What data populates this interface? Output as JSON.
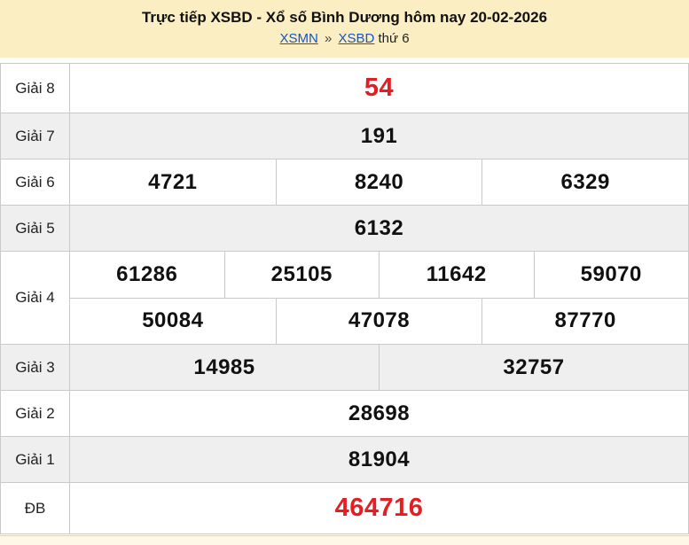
{
  "header": {
    "title": "Trực tiếp XSBD - Xổ số Bình Dương hôm nay 20-02-2026",
    "breadcrumb": {
      "link1": "XSMN",
      "separator": "»",
      "link2": "XSBD",
      "suffix": "thứ 6"
    }
  },
  "colors": {
    "header_bg": "#fbeec3",
    "row_alt_bg": "#efefef",
    "border": "#c9c9c9",
    "number_black": "#111111",
    "highlight_red": "#e31e24",
    "link_blue": "#1155cc",
    "footer_strip_bg": "#fcf7e6"
  },
  "results": {
    "rows": [
      {
        "label": "Giải 8",
        "cells": [
          "54"
        ],
        "highlight": true
      },
      {
        "label": "Giải 7",
        "cells": [
          "191"
        ]
      },
      {
        "label": "Giải 6",
        "cells": [
          "4721",
          "8240",
          "6329"
        ]
      },
      {
        "label": "Giải 5",
        "cells": [
          "6132"
        ]
      },
      {
        "label": "Giải 4",
        "cells_row1": [
          "61286",
          "25105",
          "11642",
          "59070"
        ],
        "cells_row2": [
          "50084",
          "47078",
          "87770"
        ]
      },
      {
        "label": "Giải 3",
        "cells": [
          "14985",
          "32757"
        ]
      },
      {
        "label": "Giải 2",
        "cells": [
          "28698"
        ]
      },
      {
        "label": "Giải 1",
        "cells": [
          "81904"
        ]
      },
      {
        "label": "ĐB",
        "cells": [
          "464716"
        ],
        "highlight": true
      }
    ]
  }
}
